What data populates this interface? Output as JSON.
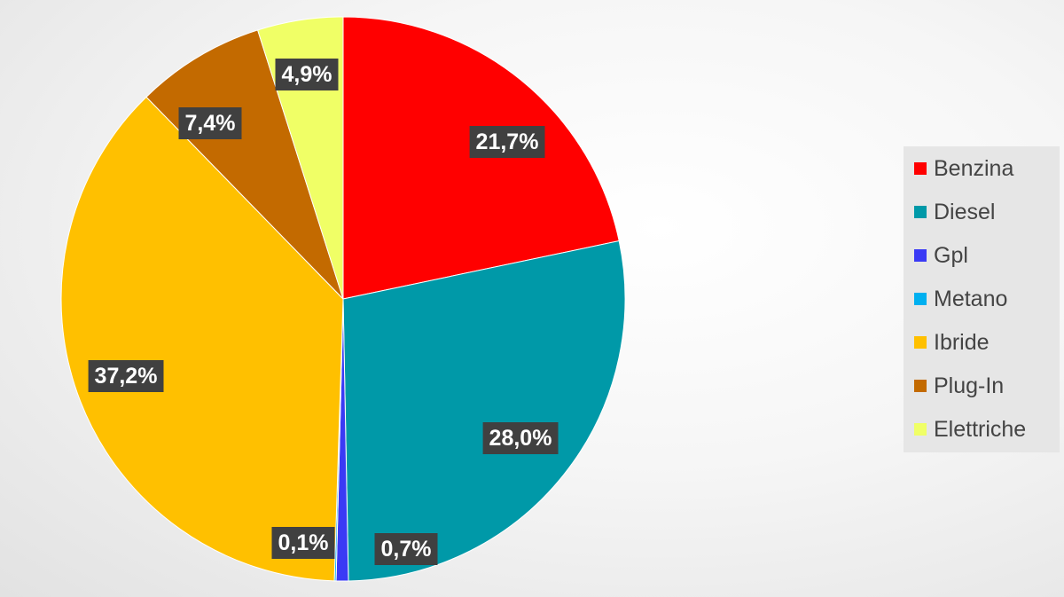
{
  "chart_data": {
    "type": "pie",
    "title": "",
    "legend_position": "right",
    "slices": [
      {
        "name": "Benzina",
        "value": 21.7,
        "label": "21,7%",
        "color": "#ff0000"
      },
      {
        "name": "Diesel",
        "value": 28.0,
        "label": "28,0%",
        "color": "#0099a8"
      },
      {
        "name": "Gpl",
        "value": 0.7,
        "label": "0,7%",
        "color": "#3a3af5"
      },
      {
        "name": "Metano",
        "value": 0.1,
        "label": "0,1%",
        "color": "#00b0f0"
      },
      {
        "name": "Ibride",
        "value": 37.2,
        "label": "37,2%",
        "color": "#ffc000"
      },
      {
        "name": "Plug-In",
        "value": 7.4,
        "label": "7,4%",
        "color": "#c36a00"
      },
      {
        "name": "Elettriche",
        "value": 4.9,
        "label": "4,9%",
        "color": "#f0ff66"
      }
    ]
  }
}
